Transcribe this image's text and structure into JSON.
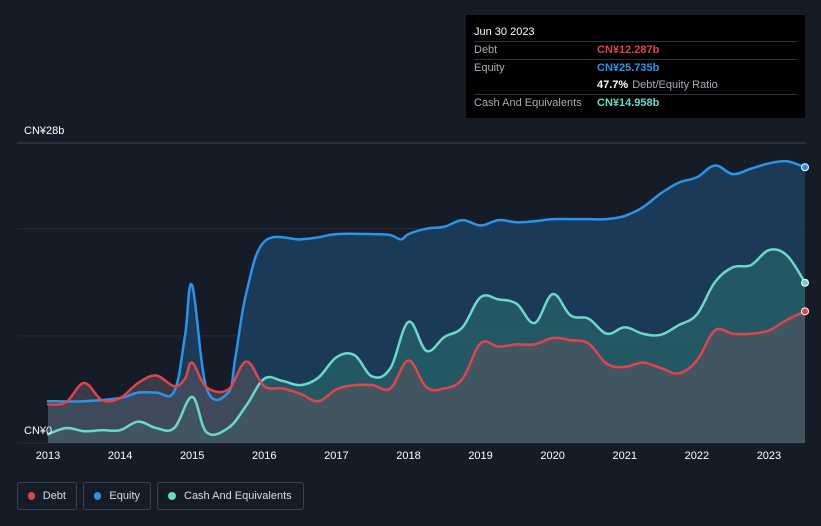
{
  "tooltip": {
    "date": "Jun 30 2023",
    "debt_label": "Debt",
    "debt_value": "CN¥12.287b",
    "equity_label": "Equity",
    "equity_value": "CN¥25.735b",
    "ratio_value": "47.7%",
    "ratio_label": "Debt/Equity Ratio",
    "cash_label": "Cash And Equivalents",
    "cash_value": "CN¥14.958b"
  },
  "legend": {
    "debt": "Debt",
    "equity": "Equity",
    "cash": "Cash And Equivalents"
  },
  "colors": {
    "debt": "#e0444d",
    "equity": "#2a95e8",
    "cash": "#6ad9c8",
    "background": "#151b27"
  },
  "chart_data": {
    "type": "area",
    "y_top_label": "CN¥28b",
    "y_bottom_label": "CN¥0",
    "ylim": [
      0,
      28
    ],
    "xlim": [
      2013,
      2023.5
    ],
    "x_ticks": [
      "2013",
      "2014",
      "2015",
      "2016",
      "2017",
      "2018",
      "2019",
      "2020",
      "2021",
      "2022",
      "2023"
    ],
    "grid": true,
    "legend_position": "bottom-left",
    "series": [
      {
        "name": "Equity",
        "unit": "CN¥b",
        "x": [
          2013.0,
          2013.5,
          2014.0,
          2014.25,
          2014.5,
          2014.75,
          2014.9,
          2015.0,
          2015.2,
          2015.5,
          2015.6,
          2015.75,
          2016.0,
          2016.5,
          2016.75,
          2017.0,
          2017.5,
          2017.75,
          2017.9,
          2018.0,
          2018.25,
          2018.5,
          2018.75,
          2019.0,
          2019.25,
          2019.5,
          2019.75,
          2020.0,
          2020.25,
          2020.5,
          2020.75,
          2021.0,
          2021.25,
          2021.5,
          2021.75,
          2022.0,
          2022.25,
          2022.5,
          2022.75,
          2023.0,
          2023.25,
          2023.5
        ],
        "values": [
          3.9,
          3.9,
          4.2,
          4.7,
          4.7,
          4.8,
          10.0,
          14.7,
          5.1,
          4.7,
          8.0,
          14.0,
          18.8,
          19.0,
          19.2,
          19.5,
          19.5,
          19.4,
          19.0,
          19.5,
          20.0,
          20.2,
          20.8,
          20.3,
          20.8,
          20.6,
          20.7,
          20.9,
          20.9,
          20.9,
          20.9,
          21.2,
          22.0,
          23.3,
          24.3,
          24.8,
          25.9,
          25.1,
          25.6,
          26.1,
          26.3,
          25.735
        ]
      },
      {
        "name": "Cash And Equivalents",
        "unit": "CN¥b",
        "x": [
          2013.0,
          2013.25,
          2013.5,
          2013.75,
          2014.0,
          2014.25,
          2014.5,
          2014.75,
          2015.0,
          2015.2,
          2015.5,
          2015.75,
          2016.0,
          2016.25,
          2016.5,
          2016.75,
          2017.0,
          2017.25,
          2017.5,
          2017.75,
          2018.0,
          2018.25,
          2018.5,
          2018.75,
          2019.0,
          2019.25,
          2019.5,
          2019.75,
          2020.0,
          2020.25,
          2020.5,
          2020.75,
          2021.0,
          2021.25,
          2021.5,
          2021.75,
          2022.0,
          2022.25,
          2022.5,
          2022.75,
          2023.0,
          2023.25,
          2023.5
        ],
        "values": [
          0.8,
          1.4,
          1.1,
          1.2,
          1.2,
          2.0,
          1.4,
          1.4,
          4.3,
          1.0,
          1.4,
          3.5,
          6.0,
          5.8,
          5.4,
          6.1,
          8.0,
          8.2,
          6.2,
          7.0,
          11.3,
          8.6,
          9.9,
          10.8,
          13.6,
          13.4,
          13.0,
          11.2,
          13.9,
          11.9,
          11.6,
          10.2,
          10.8,
          10.2,
          10.1,
          11.0,
          12.0,
          15.0,
          16.4,
          16.6,
          18.0,
          17.5,
          14.958
        ]
      },
      {
        "name": "Debt",
        "unit": "CN¥b",
        "x": [
          2013.0,
          2013.25,
          2013.5,
          2013.75,
          2014.0,
          2014.25,
          2014.5,
          2014.75,
          2014.9,
          2015.0,
          2015.2,
          2015.5,
          2015.75,
          2016.0,
          2016.25,
          2016.5,
          2016.75,
          2017.0,
          2017.25,
          2017.5,
          2017.75,
          2018.0,
          2018.25,
          2018.5,
          2018.75,
          2019.0,
          2019.25,
          2019.5,
          2019.75,
          2020.0,
          2020.25,
          2020.5,
          2020.75,
          2021.0,
          2021.25,
          2021.5,
          2021.75,
          2022.0,
          2022.25,
          2022.5,
          2022.75,
          2023.0,
          2023.25,
          2023.5
        ],
        "values": [
          3.6,
          3.8,
          5.6,
          4.0,
          4.2,
          5.6,
          6.3,
          5.3,
          6.0,
          7.5,
          5.2,
          5.0,
          7.6,
          5.3,
          5.1,
          4.6,
          3.9,
          5.0,
          5.4,
          5.4,
          5.1,
          7.7,
          5.2,
          5.1,
          6.0,
          9.3,
          9.0,
          9.2,
          9.2,
          9.8,
          9.6,
          9.3,
          7.4,
          7.1,
          7.5,
          7.0,
          6.5,
          7.7,
          10.5,
          10.2,
          10.2,
          10.5,
          11.5,
          12.287
        ]
      }
    ]
  }
}
